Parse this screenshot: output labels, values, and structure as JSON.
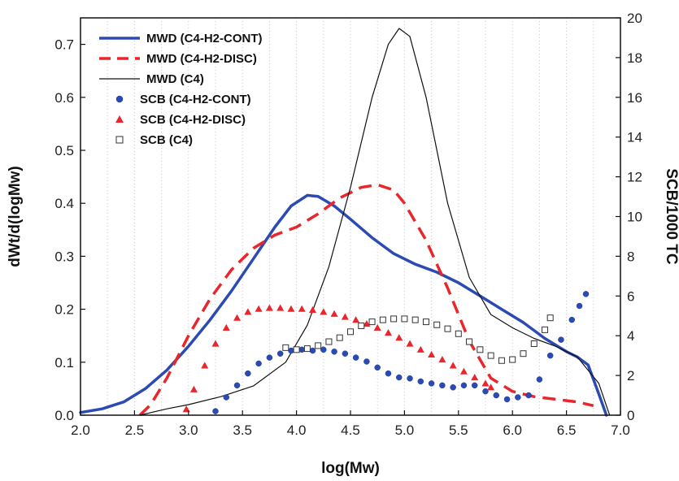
{
  "chart_data": {
    "type": "line",
    "title": "",
    "xlabel": "log(Mw)",
    "ylabel": "dWt/d(logMw)",
    "y2label": "SCB/1000 TC",
    "xlim": [
      2.0,
      7.0
    ],
    "ylim": [
      0.0,
      0.75
    ],
    "y2lim": [
      0,
      20
    ],
    "x_ticks": [
      "2.0",
      "2.5",
      "3.0",
      "3.5",
      "4.0",
      "4.5",
      "5.0",
      "5.5",
      "6.0",
      "6.5",
      "7.0"
    ],
    "y_ticks": [
      "0.0",
      "0.1",
      "0.2",
      "0.3",
      "0.4",
      "0.5",
      "0.6",
      "0.7"
    ],
    "y2_ticks": [
      "0",
      "2",
      "4",
      "6",
      "8",
      "10",
      "12",
      "14",
      "16",
      "18",
      "20"
    ],
    "grid": "vertical dotted",
    "legend_position": "top-left",
    "series": [
      {
        "name": "MWD (C4-H2-CONT)",
        "axis": "left",
        "style": "solid-thick",
        "color": "#2B4BB3",
        "x": [
          2.0,
          2.2,
          2.4,
          2.6,
          2.8,
          3.0,
          3.2,
          3.4,
          3.6,
          3.8,
          3.95,
          4.1,
          4.2,
          4.35,
          4.5,
          4.7,
          4.9,
          5.1,
          5.3,
          5.5,
          5.7,
          5.9,
          6.1,
          6.3,
          6.5,
          6.6,
          6.7,
          6.8,
          6.87
        ],
        "y": [
          0.005,
          0.012,
          0.025,
          0.05,
          0.085,
          0.13,
          0.18,
          0.235,
          0.295,
          0.355,
          0.395,
          0.415,
          0.413,
          0.395,
          0.37,
          0.335,
          0.305,
          0.285,
          0.27,
          0.25,
          0.225,
          0.2,
          0.175,
          0.145,
          0.12,
          0.11,
          0.095,
          0.04,
          0.0
        ]
      },
      {
        "name": "MWD (C4-H2-DISC)",
        "axis": "left",
        "style": "dashed",
        "color": "#E8262B",
        "x": [
          2.55,
          2.65,
          2.8,
          3.0,
          3.2,
          3.4,
          3.6,
          3.8,
          4.0,
          4.2,
          4.4,
          4.6,
          4.75,
          4.9,
          5.0,
          5.2,
          5.4,
          5.6,
          5.8,
          6.0,
          6.2,
          6.4,
          6.6,
          6.75
        ],
        "y": [
          0.0,
          0.02,
          0.07,
          0.15,
          0.22,
          0.275,
          0.315,
          0.34,
          0.355,
          0.38,
          0.41,
          0.43,
          0.435,
          0.425,
          0.4,
          0.33,
          0.24,
          0.14,
          0.07,
          0.045,
          0.035,
          0.03,
          0.025,
          0.018
        ]
      },
      {
        "name": "MWD (C4)",
        "axis": "left",
        "style": "solid-thin",
        "color": "#111111",
        "x": [
          2.55,
          2.8,
          3.0,
          3.3,
          3.6,
          3.9,
          4.1,
          4.3,
          4.5,
          4.7,
          4.85,
          4.95,
          5.05,
          5.2,
          5.4,
          5.6,
          5.8,
          6.0,
          6.2,
          6.4,
          6.6,
          6.8,
          6.9
        ],
        "y": [
          0.0,
          0.012,
          0.02,
          0.035,
          0.055,
          0.1,
          0.17,
          0.28,
          0.43,
          0.6,
          0.7,
          0.73,
          0.715,
          0.6,
          0.4,
          0.26,
          0.19,
          0.165,
          0.145,
          0.13,
          0.11,
          0.06,
          0.0
        ]
      },
      {
        "name": "SCB (C4-H2-CONT)",
        "axis": "right",
        "marker": "circle",
        "color": "#2B4BB3",
        "x": [
          3.25,
          3.35,
          3.45,
          3.55,
          3.65,
          3.75,
          3.85,
          3.95,
          4.05,
          4.15,
          4.25,
          4.35,
          4.45,
          4.55,
          4.65,
          4.75,
          4.85,
          4.95,
          5.05,
          5.15,
          5.25,
          5.35,
          5.45,
          5.55,
          5.65,
          5.75,
          5.85,
          5.95,
          6.05,
          6.15,
          6.25,
          6.35,
          6.45,
          6.55,
          6.62,
          6.68
        ],
        "y": [
          0.2,
          0.9,
          1.5,
          2.1,
          2.6,
          2.9,
          3.1,
          3.25,
          3.3,
          3.25,
          3.3,
          3.2,
          3.1,
          2.9,
          2.7,
          2.4,
          2.1,
          1.9,
          1.85,
          1.7,
          1.6,
          1.5,
          1.4,
          1.5,
          1.5,
          1.2,
          1.0,
          0.8,
          0.9,
          1.0,
          1.8,
          3.0,
          3.8,
          4.8,
          5.5,
          6.1
        ]
      },
      {
        "name": "SCB (C4-H2-DISC)",
        "axis": "right",
        "marker": "triangle",
        "color": "#E8262B",
        "x": [
          2.98,
          3.05,
          3.15,
          3.25,
          3.35,
          3.45,
          3.55,
          3.65,
          3.75,
          3.85,
          3.95,
          4.05,
          4.15,
          4.25,
          4.35,
          4.45,
          4.55,
          4.65,
          4.75,
          4.85,
          4.95,
          5.05,
          5.15,
          5.25,
          5.35,
          5.45,
          5.55,
          5.65,
          5.75,
          5.8
        ],
        "y": [
          0.3,
          1.3,
          2.5,
          3.6,
          4.4,
          4.9,
          5.2,
          5.35,
          5.4,
          5.4,
          5.35,
          5.35,
          5.3,
          5.2,
          5.1,
          4.95,
          4.8,
          4.6,
          4.4,
          4.15,
          3.9,
          3.6,
          3.3,
          3.05,
          2.8,
          2.5,
          2.2,
          1.9,
          1.6,
          1.4
        ]
      },
      {
        "name": "SCB (C4)",
        "axis": "right",
        "marker": "square-open",
        "color": "#333333",
        "x": [
          3.9,
          4.0,
          4.1,
          4.2,
          4.3,
          4.4,
          4.5,
          4.6,
          4.7,
          4.8,
          4.9,
          5.0,
          5.1,
          5.2,
          5.3,
          5.4,
          5.5,
          5.6,
          5.7,
          5.8,
          5.9,
          6.0,
          6.1,
          6.2,
          6.3,
          6.35
        ],
        "y": [
          3.4,
          3.3,
          3.35,
          3.5,
          3.7,
          3.9,
          4.2,
          4.5,
          4.7,
          4.8,
          4.85,
          4.85,
          4.8,
          4.7,
          4.55,
          4.35,
          4.1,
          3.7,
          3.3,
          3.0,
          2.75,
          2.8,
          3.1,
          3.6,
          4.3,
          4.9
        ]
      }
    ]
  }
}
